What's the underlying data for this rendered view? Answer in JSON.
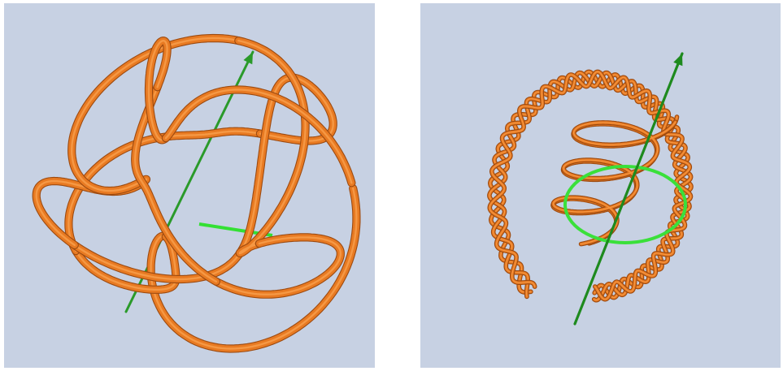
{
  "figures": [
    {
      "id": "left",
      "subject": "tangled-tube-knot",
      "colors": {
        "background": "#c7d1e3",
        "tube": "#e87a22",
        "tube_edge": "#9c4a10",
        "axis": "#2a9a2a",
        "ring": "#33e033"
      }
    },
    {
      "id": "right",
      "subject": "braided-torus-knot-with-axis-and-ring",
      "colors": {
        "background": "#c7d1e3",
        "tube": "#e87a22",
        "tube_edge": "#9c4a10",
        "axis": "#1e8a1e",
        "ring": "#3ae03a"
      }
    }
  ]
}
